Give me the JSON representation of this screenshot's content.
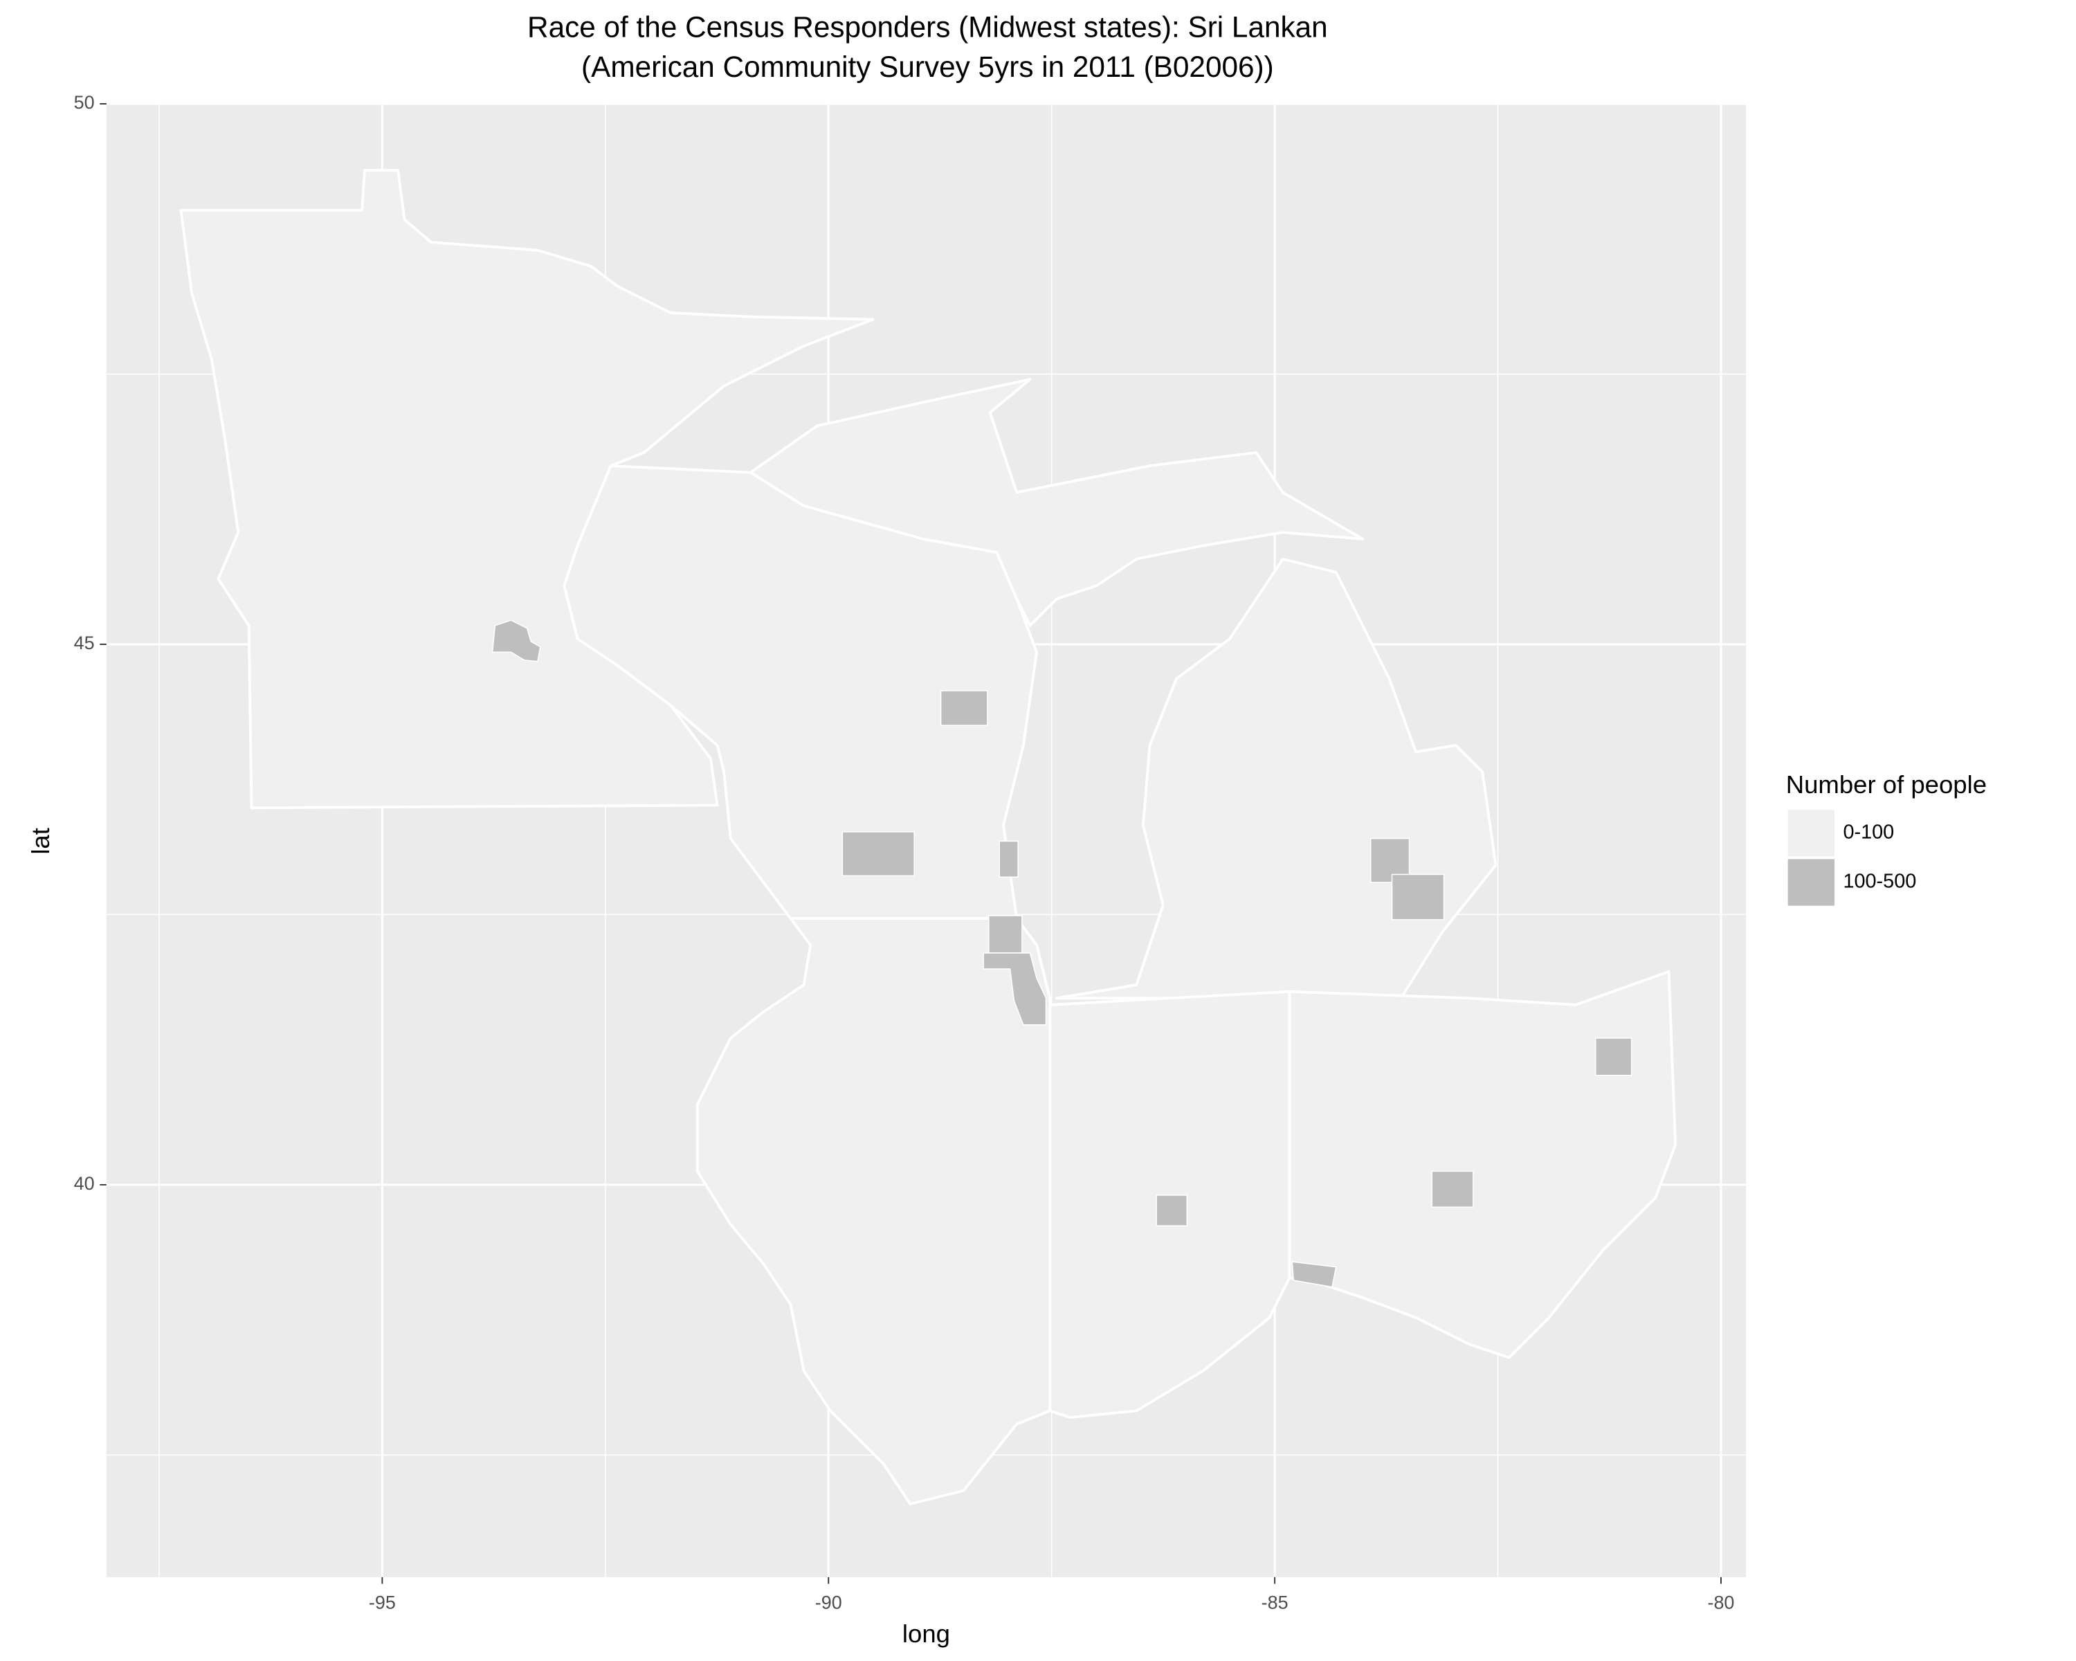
{
  "chart_data": {
    "type": "map",
    "title": "Race of the Census Responders (Midwest states): Sri Lankan",
    "subtitle": "(American Community Survey 5yrs in 2011 (B02006))",
    "x_label": "long",
    "y_label": "lat",
    "xlim": [
      -98.09,
      -79.72
    ],
    "ylim": [
      36.37,
      50
    ],
    "xticks": [
      -95,
      -90,
      -85,
      -80
    ],
    "yticks": [
      40,
      45,
      50
    ],
    "grid": true,
    "panel_color": "#ebebeb",
    "legend": {
      "title": "Number of people",
      "entries": [
        {
          "label": "0-100",
          "color": "#f0f0f0"
        },
        {
          "label": "100-500",
          "color": "#bebebe"
        }
      ]
    }
  }
}
